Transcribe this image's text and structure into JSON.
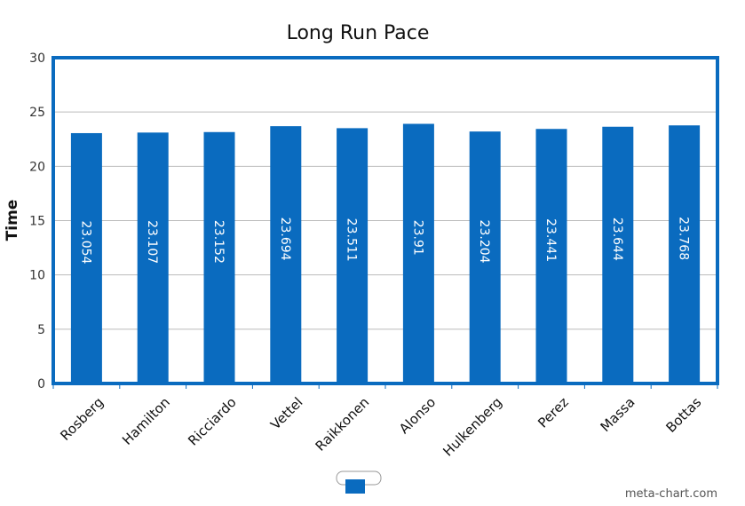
{
  "chart_data": {
    "type": "bar",
    "title": "Long Run Pace",
    "xlabel": "",
    "ylabel": "Time",
    "ylim": [
      0,
      30
    ],
    "yticks": [
      0,
      5,
      10,
      15,
      20,
      25,
      30
    ],
    "grid": true,
    "categories": [
      "Rosberg",
      "Hamilton",
      "Ricciardo",
      "Vettel",
      "Raikkonen",
      "Alonso",
      "Hulkenberg",
      "Perez",
      "Massa",
      "Bottas"
    ],
    "values": [
      23.054,
      23.107,
      23.152,
      23.694,
      23.511,
      23.91,
      23.204,
      23.441,
      23.644,
      23.768
    ],
    "data_labels": [
      "23.054",
      "23.107",
      "23.152",
      "23.694",
      "23.511",
      "23.91",
      "23.204",
      "23.441",
      "23.644",
      "23.768"
    ],
    "bar_color": "#0a6bbf",
    "frame_color": "#0a6bbf",
    "legend_position": "bottom-center"
  },
  "footer": {
    "credit": "meta-chart.com"
  }
}
